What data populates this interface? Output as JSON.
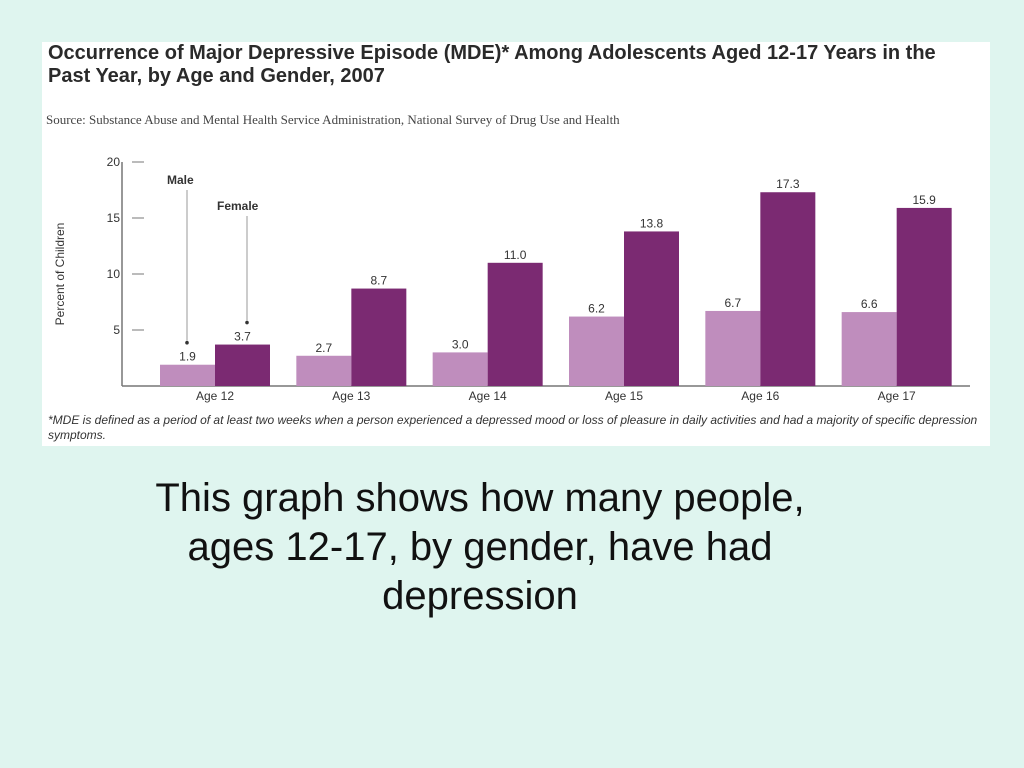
{
  "caption": "This graph shows how many people, ages 12-17, by gender, have had depression",
  "figure": {
    "source": "Source: Substance Abuse and Mental Health Service Administration, National Survey of Drug Use and Health",
    "footnote": "*MDE is defined as a period of at least two weeks when a person experienced a depressed mood or loss of pleasure in daily activities and had a majority of specific depression symptoms."
  },
  "colors": {
    "male": "#bf8dbd",
    "female": "#7b2a72",
    "axis": "#777777"
  },
  "chart_data": {
    "type": "bar",
    "title": "Occurrence of Major Depressive Episode (MDE)* Among Adolescents Aged 12-17 Years in the Past Year, by Age and Gender, 2007",
    "ylabel": "Percent of Children",
    "xlabel": "",
    "ylim": [
      0,
      20
    ],
    "yticks": [
      5,
      10,
      15,
      20
    ],
    "categories": [
      "Age 12",
      "Age 13",
      "Age 14",
      "Age 15",
      "Age 16",
      "Age 17"
    ],
    "series": [
      {
        "name": "Male",
        "values": [
          1.9,
          2.7,
          3.0,
          6.2,
          6.7,
          6.6
        ]
      },
      {
        "name": "Female",
        "values": [
          3.7,
          8.7,
          11.0,
          13.8,
          17.3,
          15.9
        ]
      }
    ],
    "value_labels": {
      "Male": [
        "1.9",
        "2.7",
        "3.0",
        "6.2",
        "6.7",
        "6.6"
      ],
      "Female": [
        "3.7",
        "8.7",
        "11.0",
        "13.8",
        "17.3",
        "15.9"
      ]
    },
    "legend_placement": "annotation callouts on first category",
    "grid": false
  }
}
